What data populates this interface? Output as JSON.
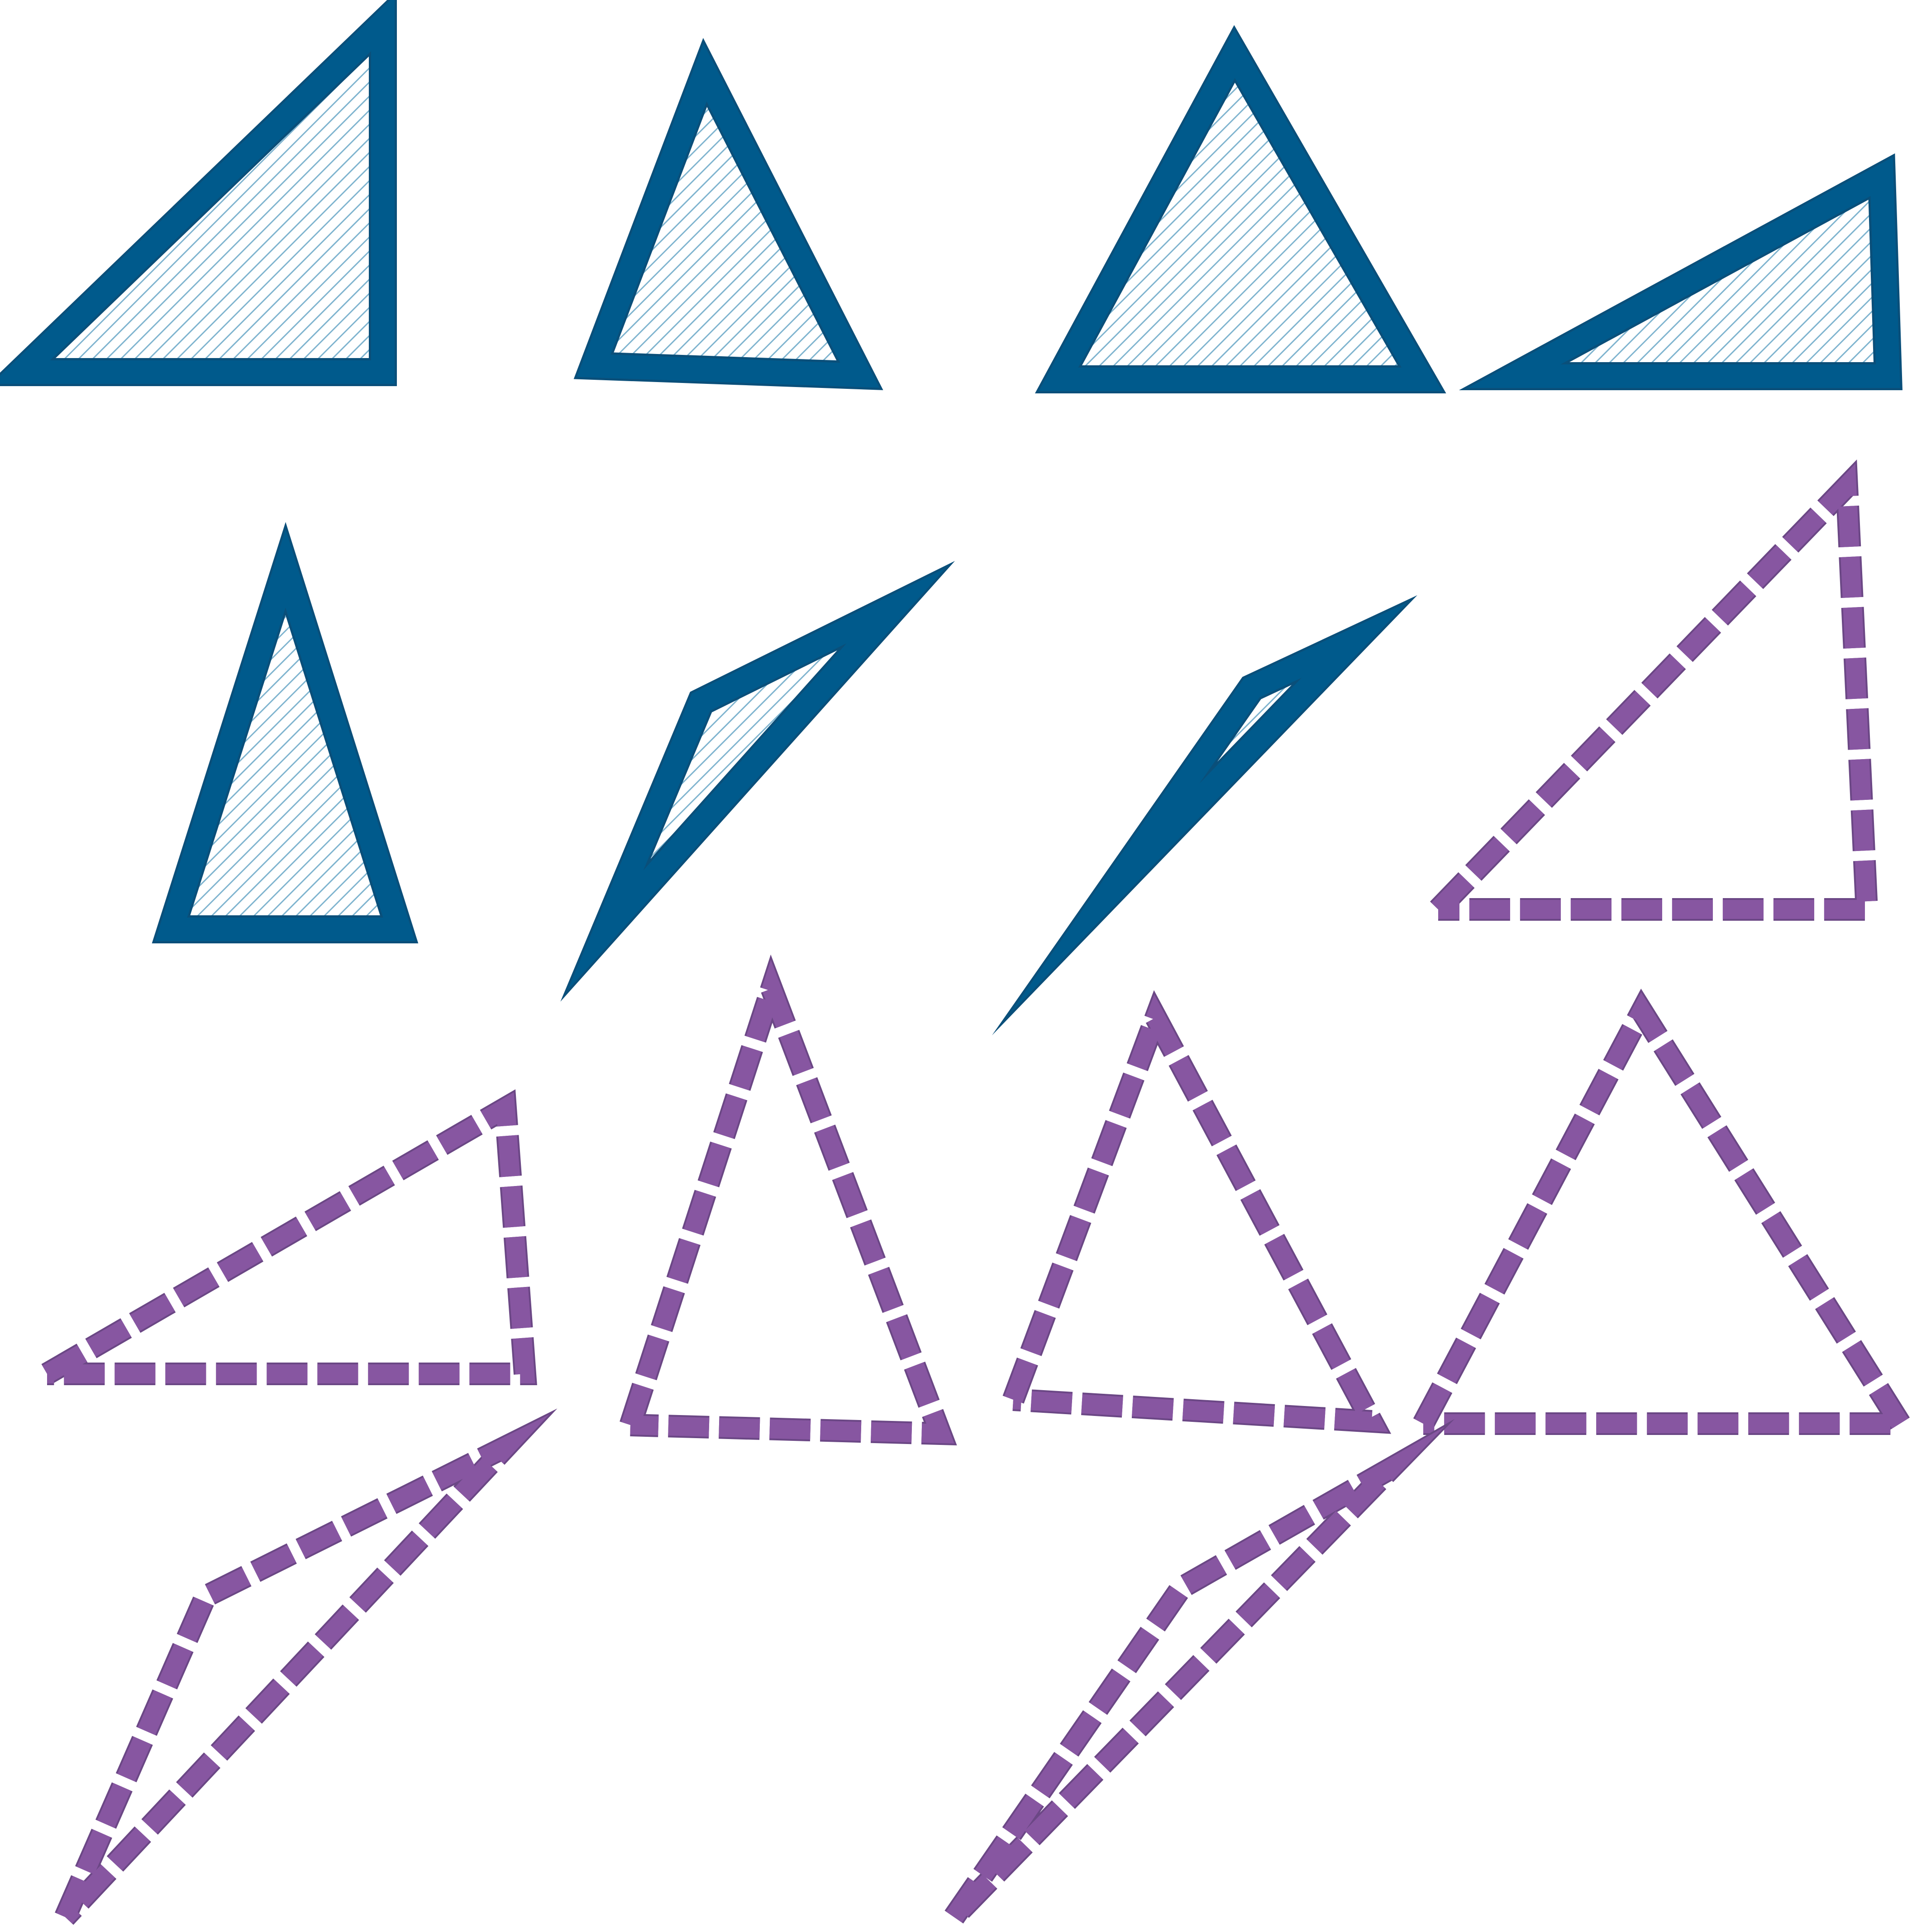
{
  "figure": {
    "kind": "triangle-shape-grid",
    "columns": 4,
    "colors": {
      "background": "#ffffff",
      "filled_outline": "#005a8c",
      "filled_outline_edge": "#0a4f7a",
      "hatch_line": "#7fb4cf",
      "hatch_background": "#ffffff",
      "dashed_outline": "#8756a1",
      "dashed_outline_edge": "#6b4785",
      "dash_gap": "#ffffff"
    },
    "filled_style": "solid thick outline with diagonal hatch fill",
    "dashed_style": "thick dashed outline with no fill",
    "shapes": [
      {
        "name": "right-triangle",
        "style": "filled",
        "icon": "right-triangle-icon"
      },
      {
        "name": "acute-triangle",
        "style": "filled",
        "icon": "acute-triangle-icon"
      },
      {
        "name": "near-equilateral-triangle",
        "style": "filled",
        "icon": "equilateral-triangle-icon"
      },
      {
        "name": "wide-right-triangle",
        "style": "filled",
        "icon": "right-triangle-icon"
      },
      {
        "name": "tall-isosceles-triangle",
        "style": "filled",
        "icon": "isosceles-triangle-icon"
      },
      {
        "name": "obtuse-sliver-triangle",
        "style": "filled",
        "icon": "obtuse-triangle-icon"
      },
      {
        "name": "thin-sliver-triangle",
        "style": "filled",
        "icon": "sliver-triangle-icon"
      },
      {
        "name": "right-triangle-dashed",
        "style": "dashed",
        "icon": "right-triangle-icon"
      },
      {
        "name": "wide-right-triangle-dashed",
        "style": "dashed",
        "icon": "right-triangle-icon"
      },
      {
        "name": "tall-isosceles-triangle-dashed",
        "style": "dashed",
        "icon": "isosceles-triangle-icon"
      },
      {
        "name": "acute-triangle-dashed",
        "style": "dashed",
        "icon": "acute-triangle-icon"
      },
      {
        "name": "near-equilateral-triangle-dashed",
        "style": "dashed",
        "icon": "equilateral-triangle-icon"
      },
      {
        "name": "obtuse-sliver-triangle-dashed",
        "style": "dashed",
        "icon": "obtuse-triangle-icon"
      },
      {
        "name": "thin-sliver-triangle-dashed",
        "style": "dashed",
        "icon": "sliver-triangle-icon"
      }
    ]
  }
}
